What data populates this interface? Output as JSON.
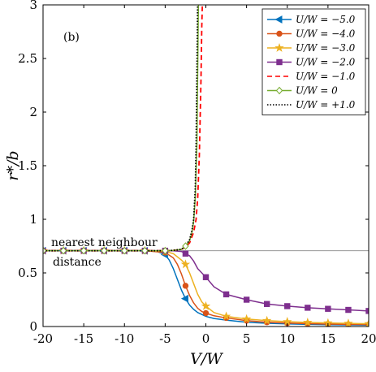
{
  "chart_data": {
    "type": "line",
    "panel_label": "(b)",
    "xlabel": "V/W",
    "ylabel": "r*/b",
    "xlim": [
      -20,
      20
    ],
    "ylim": [
      0,
      3
    ],
    "xticks": [
      -20,
      -15,
      -10,
      -5,
      0,
      5,
      10,
      15,
      20
    ],
    "xtick_labels": [
      "-20",
      "-15",
      "-10",
      "-5",
      "0",
      "5",
      "10",
      "15",
      "20"
    ],
    "yticks": [
      0,
      0.5,
      1,
      1.5,
      2,
      2.5,
      3
    ],
    "ytick_labels": [
      "0",
      "0.5",
      "1",
      "1.5",
      "2",
      "2.5",
      "3"
    ],
    "grid": false,
    "legend_position": "top-right",
    "reference_line": {
      "y": 0.707,
      "label_above": "nearest neighbour",
      "label_below": "distance"
    },
    "series": [
      {
        "name": "U/W = −5.0",
        "color": "#0072BD",
        "dash": "",
        "marker": "left-triangle",
        "x": [
          -20,
          -17.5,
          -15,
          -12.5,
          -10,
          -7.5,
          -6,
          -5,
          -4.5,
          -4,
          -3.5,
          -3,
          -2.5,
          -2,
          -1.5,
          -1,
          0,
          1,
          2.5,
          5,
          7.5,
          10,
          12.5,
          15,
          17.5,
          20
        ],
        "y": [
          0.707,
          0.707,
          0.707,
          0.707,
          0.707,
          0.706,
          0.7,
          0.67,
          0.62,
          0.54,
          0.44,
          0.34,
          0.26,
          0.2,
          0.16,
          0.13,
          0.095,
          0.075,
          0.06,
          0.04,
          0.03,
          0.025,
          0.02,
          0.017,
          0.015,
          0.013
        ],
        "marker_x": [
          -20,
          -17.5,
          -15,
          -12.5,
          -10,
          -7.5,
          -5,
          -2.5
        ]
      },
      {
        "name": "U/W = −4.0",
        "color": "#D95319",
        "dash": "",
        "marker": "circle",
        "x": [
          -20,
          -17.5,
          -15,
          -12.5,
          -10,
          -7.5,
          -5,
          -4,
          -3.5,
          -3,
          -2.5,
          -2,
          -1.5,
          -1,
          -0.5,
          0,
          1,
          2.5,
          5,
          7.5,
          10,
          12.5,
          15,
          17.5,
          20
        ],
        "y": [
          0.707,
          0.707,
          0.707,
          0.707,
          0.707,
          0.707,
          0.69,
          0.64,
          0.58,
          0.49,
          0.38,
          0.29,
          0.22,
          0.17,
          0.14,
          0.125,
          0.1,
          0.08,
          0.055,
          0.04,
          0.032,
          0.027,
          0.023,
          0.02,
          0.018
        ],
        "marker_x": [
          -20,
          -17.5,
          -15,
          -12.5,
          -10,
          -7.5,
          -5,
          -2.5,
          0,
          2.5,
          5,
          7.5,
          10,
          12.5,
          15,
          17.5,
          20
        ]
      },
      {
        "name": "U/W = −3.0",
        "color": "#EDB120",
        "dash": "",
        "marker": "star",
        "x": [
          -20,
          -17.5,
          -15,
          -12.5,
          -10,
          -7.5,
          -5,
          -4,
          -3,
          -2.5,
          -2,
          -1.5,
          -1,
          -0.5,
          0,
          1,
          2.5,
          5,
          7.5,
          10,
          12.5,
          15,
          17.5,
          20
        ],
        "y": [
          0.707,
          0.707,
          0.707,
          0.707,
          0.707,
          0.707,
          0.7,
          0.68,
          0.62,
          0.58,
          0.5,
          0.4,
          0.3,
          0.23,
          0.19,
          0.13,
          0.095,
          0.07,
          0.055,
          0.045,
          0.038,
          0.033,
          0.029,
          0.026
        ],
        "marker_x": [
          -20,
          -17.5,
          -15,
          -12.5,
          -10,
          -7.5,
          -5,
          -2.5,
          0,
          2.5,
          5,
          7.5,
          10,
          12.5,
          15,
          17.5,
          20
        ]
      },
      {
        "name": "U/W = −2.0",
        "color": "#7E2F8E",
        "dash": "",
        "marker": "square",
        "x": [
          -20,
          -17.5,
          -15,
          -12.5,
          -10,
          -7.5,
          -5,
          -4,
          -3,
          -2,
          -1.5,
          -1,
          -0.5,
          0,
          1,
          2.5,
          5,
          7.5,
          10,
          12.5,
          15,
          17.5,
          20
        ],
        "y": [
          0.707,
          0.707,
          0.707,
          0.707,
          0.707,
          0.707,
          0.707,
          0.706,
          0.7,
          0.66,
          0.61,
          0.54,
          0.5,
          0.46,
          0.37,
          0.3,
          0.25,
          0.21,
          0.19,
          0.175,
          0.165,
          0.155,
          0.145
        ],
        "marker_x": [
          -20,
          -17.5,
          -15,
          -12.5,
          -10,
          -7.5,
          -5,
          -2.5,
          0,
          2.5,
          5,
          7.5,
          10,
          12.5,
          15,
          17.5,
          20
        ]
      },
      {
        "name": "U/W = −1.0",
        "color": "#FF0000",
        "dash": "6,4",
        "marker": "none",
        "x": [
          -20,
          -10,
          -5,
          -4,
          -3,
          -2.5,
          -2,
          -1.5,
          -1.2,
          -1.0,
          -0.8,
          -0.6,
          -0.5,
          -0.4
        ],
        "y": [
          0.707,
          0.707,
          0.707,
          0.71,
          0.72,
          0.74,
          0.78,
          0.88,
          1.0,
          1.2,
          1.6,
          2.3,
          2.8,
          3.1
        ],
        "marker_x": []
      },
      {
        "name": "U/W = 0",
        "color": "#77AC30",
        "dash": "",
        "marker": "diamond",
        "x": [
          -20,
          -10,
          -5,
          -4,
          -3,
          -2.5,
          -2,
          -1.7,
          -1.5,
          -1.3,
          -1.1,
          -1.0,
          -0.9
        ],
        "y": [
          0.707,
          0.707,
          0.707,
          0.71,
          0.72,
          0.75,
          0.8,
          0.88,
          0.98,
          1.2,
          1.7,
          2.4,
          3.1
        ],
        "marker_x": [
          -20,
          -17.5,
          -15,
          -12.5,
          -10,
          -7.5,
          -5,
          -2.5
        ]
      },
      {
        "name": "U/W = +1.0",
        "color": "#000000",
        "dash": "1.5,2",
        "marker": "none",
        "x": [
          -20,
          -10,
          -5,
          -4,
          -3,
          -2.5,
          -2,
          -1.7,
          -1.5,
          -1.3,
          -1.2,
          -1.1,
          -1.0
        ],
        "y": [
          0.707,
          0.707,
          0.707,
          0.71,
          0.72,
          0.75,
          0.81,
          0.9,
          1.0,
          1.3,
          1.7,
          2.4,
          3.1
        ],
        "marker_x": []
      }
    ]
  }
}
